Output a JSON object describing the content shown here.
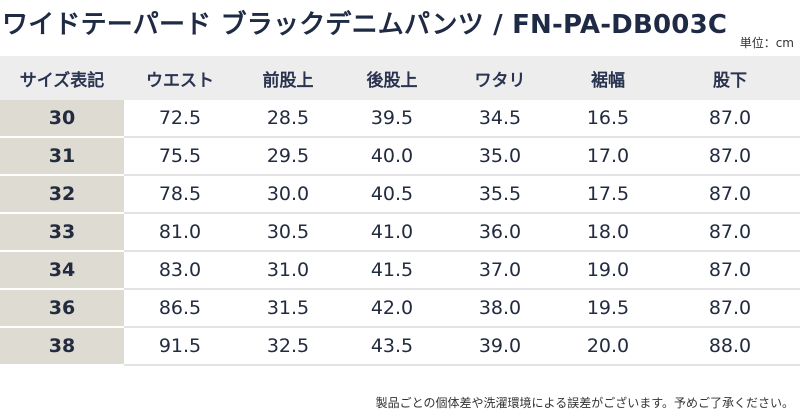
{
  "title": "ワイドテーパード ブラックデニムパンツ / FN-PA-DB003C",
  "unit": "単位：cm",
  "columns": [
    "サイズ表記",
    "ウエスト",
    "前股上",
    "後股上",
    "ワタリ",
    "裾幅",
    "股下"
  ],
  "rows": [
    [
      "30",
      "72.5",
      "28.5",
      "39.5",
      "34.5",
      "16.5",
      "87.0"
    ],
    [
      "31",
      "75.5",
      "29.5",
      "40.0",
      "35.0",
      "17.0",
      "87.0"
    ],
    [
      "32",
      "78.5",
      "30.0",
      "40.5",
      "35.5",
      "17.5",
      "87.0"
    ],
    [
      "33",
      "81.0",
      "30.5",
      "41.0",
      "36.0",
      "18.0",
      "87.0"
    ],
    [
      "34",
      "83.0",
      "31.0",
      "41.5",
      "37.0",
      "19.0",
      "87.0"
    ],
    [
      "36",
      "86.5",
      "31.5",
      "42.0",
      "38.0",
      "19.5",
      "87.0"
    ],
    [
      "38",
      "91.5",
      "32.5",
      "43.5",
      "39.0",
      "20.0",
      "88.0"
    ]
  ],
  "note": "製品ごとの個体差や洗濯環境による誤差がございます。予めご了承ください。"
}
